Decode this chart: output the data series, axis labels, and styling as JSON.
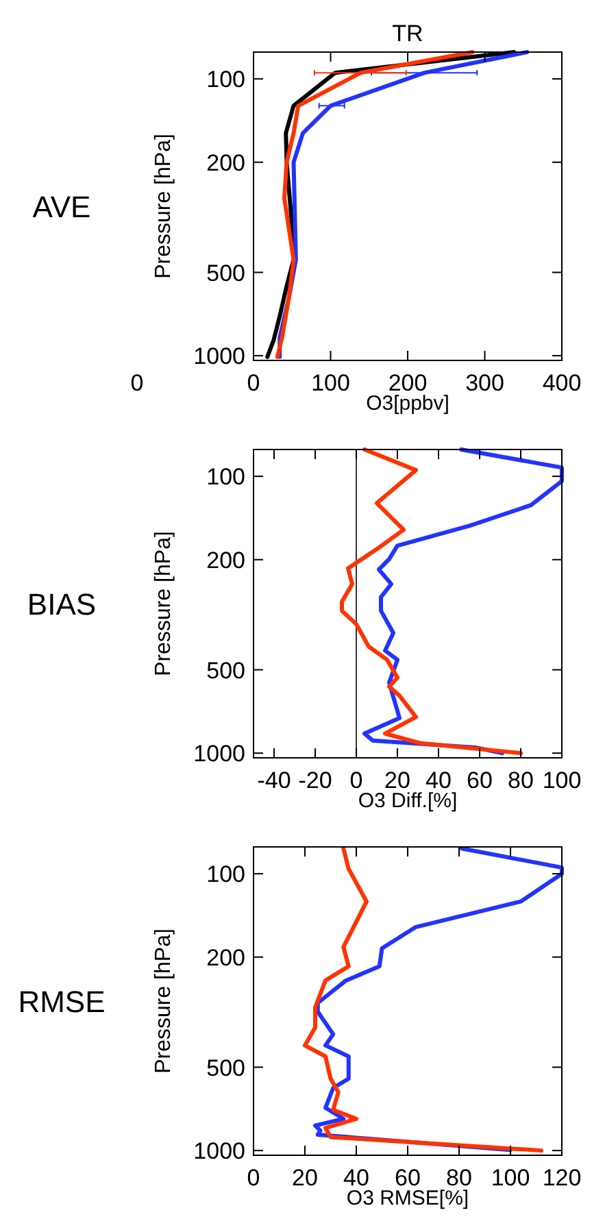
{
  "chart_data": [
    {
      "type": "line",
      "title": "TR",
      "subtitle": "AVE",
      "xlabel": "O3[ppbv]",
      "ylabel": "Pressure [hPa]",
      "xlim": [
        0,
        400
      ],
      "xticks": [
        0,
        100,
        200,
        300,
        400
      ],
      "ylim": [
        1040,
        80
      ],
      "yticks": [
        100,
        200,
        500,
        1000
      ],
      "log": "y",
      "annotations": [
        "0"
      ],
      "series": [
        {
          "color": "#000000",
          "x": [
            338,
            106,
            52,
            42,
            43,
            50,
            52,
            43,
            34,
            26,
            18
          ],
          "values": [
            80,
            95,
            125,
            157,
            200,
            340,
            450,
            560,
            720,
            880,
            1010
          ]
        },
        {
          "color": "#2233ff",
          "x": [
            355,
            222,
            100,
            64,
            52,
            55,
            46,
            34,
            34
          ],
          "values": [
            80,
            95,
            125,
            157,
            200,
            450,
            615,
            860,
            1010
          ],
          "xerrors": [
            null,
            [
              153,
              290
            ],
            [
              85,
              118
            ],
            null,
            null,
            null,
            null,
            null,
            null
          ]
        },
        {
          "color": "#ff3300",
          "x": [
            284,
            139,
            58,
            52,
            43,
            40,
            52,
            46,
            37,
            31
          ],
          "values": [
            80,
            95,
            125,
            157,
            200,
            270,
            450,
            615,
            860,
            1010
          ],
          "xerrors": [
            null,
            [
              79,
              198
            ],
            null,
            null,
            null,
            null,
            null,
            null,
            null,
            null
          ]
        }
      ]
    },
    {
      "type": "line",
      "subtitle": "BIAS",
      "xlabel": "O3 Diff.[%]",
      "ylabel": "Pressure [hPa]",
      "xlim": [
        -50,
        100
      ],
      "xticks": [
        -40,
        -20,
        0,
        20,
        40,
        60,
        80,
        100
      ],
      "ylim": [
        1040,
        80
      ],
      "yticks": [
        100,
        200,
        500,
        1000
      ],
      "log": "y",
      "ref_lines": [
        {
          "axis": "x",
          "value": 0,
          "color": "#000000"
        }
      ],
      "series": [
        {
          "color": "#2233ff",
          "x": [
            51,
            100,
            100,
            85,
            55,
            20,
            16,
            11,
            17,
            12,
            12,
            18,
            14,
            20,
            16,
            21,
            4,
            8,
            58,
            71
          ],
          "values": [
            80,
            93,
            104,
            127,
            151,
            178,
            199,
            217,
            245,
            273,
            306,
            368,
            426,
            460,
            556,
            747,
            850,
            900,
            955,
            1000
          ]
        },
        {
          "color": "#ff3300",
          "x": [
            4,
            29,
            10,
            23,
            11,
            -4,
            -2,
            -7,
            -7,
            0,
            6,
            15,
            20,
            16,
            21,
            29,
            14,
            31,
            80
          ],
          "values": [
            80,
            95,
            125,
            156,
            181,
            215,
            245,
            284,
            306,
            342,
            412,
            460,
            534,
            575,
            620,
            740,
            850,
            920,
            1000
          ]
        }
      ]
    },
    {
      "type": "line",
      "subtitle": "RMSE",
      "xlabel": "O3 RMSE[%]",
      "ylabel": "Pressure [hPa]",
      "xlim": [
        0,
        120
      ],
      "xticks": [
        0,
        20,
        40,
        60,
        80,
        100,
        120
      ],
      "ylim": [
        1040,
        80
      ],
      "yticks": [
        100,
        200,
        500,
        1000
      ],
      "log": "y",
      "series": [
        {
          "color": "#2233ff",
          "x": [
            81,
            120,
            120,
            104,
            63,
            50,
            49,
            36,
            25,
            25,
            31,
            28,
            37,
            37,
            31,
            28,
            35,
            24,
            26,
            25,
            100
          ],
          "values": [
            81,
            95,
            100,
            126,
            156,
            186,
            216,
            243,
            293,
            315,
            380,
            417,
            457,
            550,
            594,
            701,
            768,
            812,
            847,
            876,
            995
          ]
        },
        {
          "color": "#ff3300",
          "x": [
            35,
            37,
            44,
            35,
            37,
            28,
            24,
            24,
            20,
            28,
            30,
            33,
            31,
            40,
            28,
            30,
            112
          ],
          "values": [
            81,
            96,
            126,
            184,
            216,
            243,
            304,
            359,
            417,
            457,
            550,
            615,
            713,
            768,
            829,
            894,
            1000
          ]
        }
      ]
    }
  ]
}
